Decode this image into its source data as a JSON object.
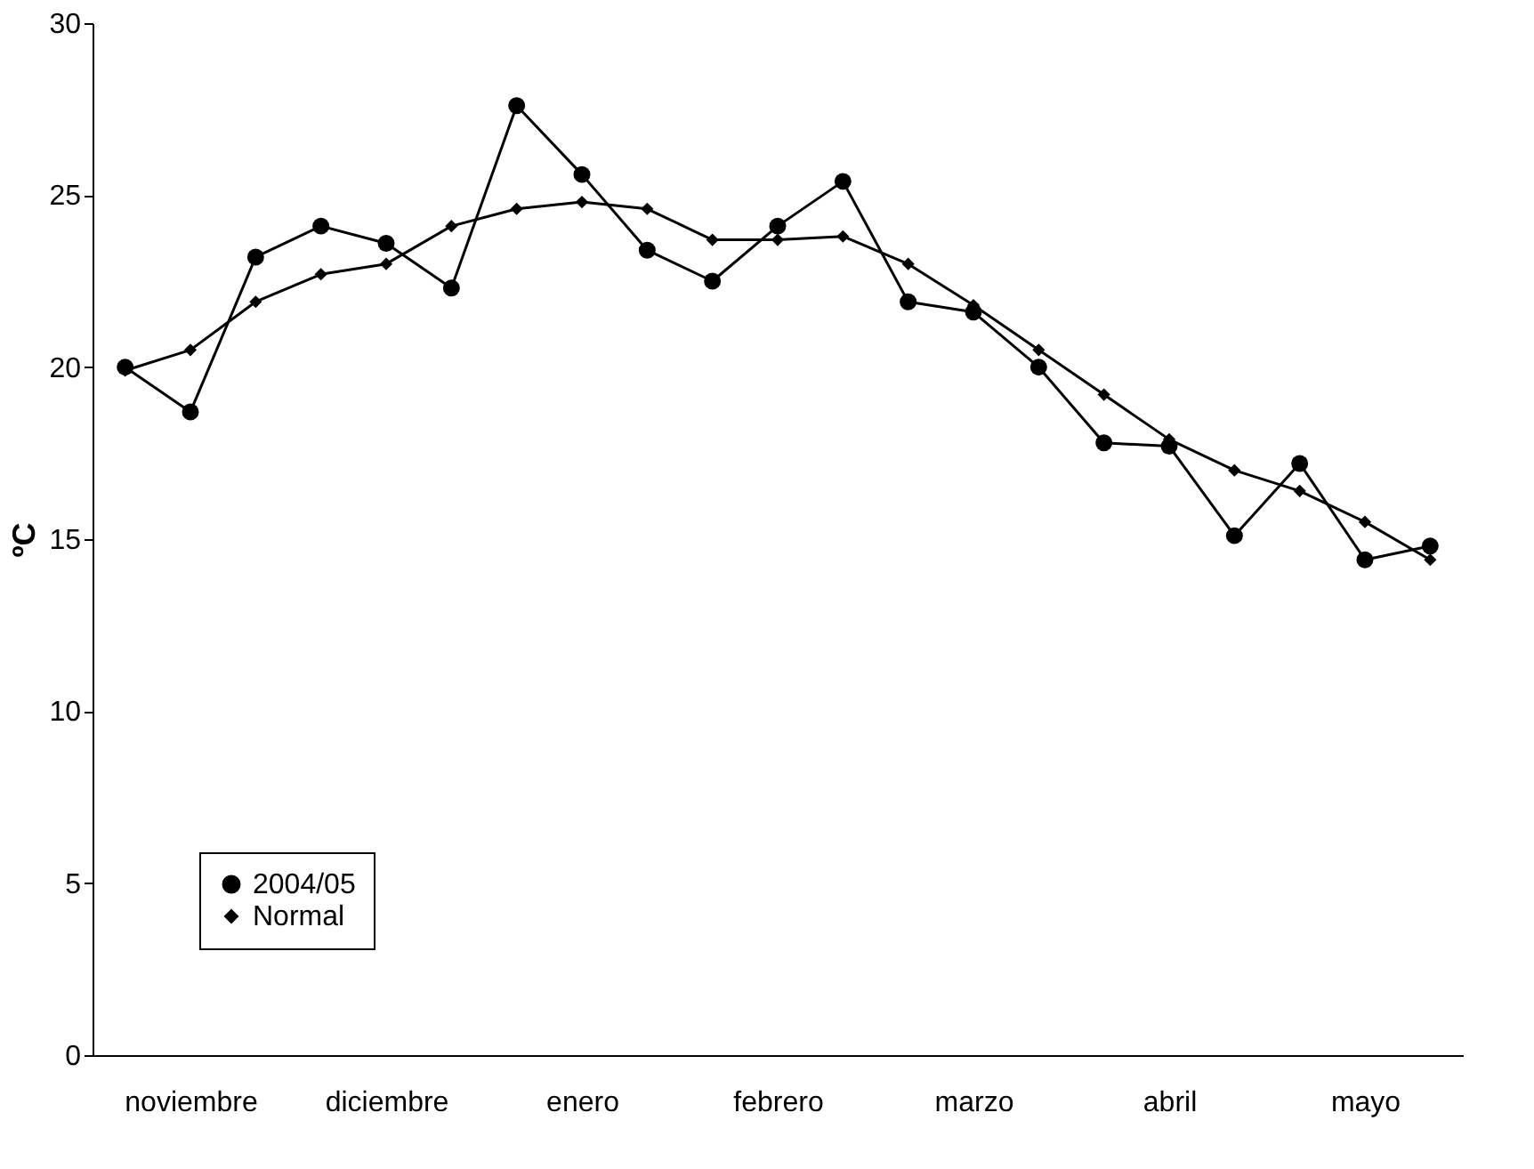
{
  "chart_data": {
    "type": "line",
    "ylabel": "ºC",
    "categories": [
      null,
      "noviembre",
      null,
      null,
      "diciembre",
      null,
      null,
      "enero",
      null,
      null,
      "febrero",
      null,
      null,
      "marzo",
      null,
      null,
      "abril",
      null,
      null,
      "mayo",
      null
    ],
    "series": [
      {
        "name": "2004/05",
        "color": "#000000",
        "marker": "circle",
        "values": [
          20.0,
          18.7,
          23.2,
          24.1,
          23.6,
          22.3,
          27.6,
          25.6,
          23.4,
          22.5,
          24.1,
          25.4,
          21.9,
          21.6,
          20.0,
          17.8,
          17.7,
          15.1,
          17.2,
          14.4,
          14.8
        ]
      },
      {
        "name": "Normal",
        "color": "#000000",
        "marker": "diamond",
        "values": [
          19.9,
          20.5,
          21.9,
          22.7,
          23.0,
          24.1,
          24.6,
          24.8,
          24.6,
          23.7,
          23.7,
          23.8,
          23.0,
          21.8,
          20.5,
          19.2,
          17.9,
          17.0,
          16.4,
          15.5,
          14.4
        ]
      }
    ],
    "ylim": [
      0,
      30
    ],
    "yticks": [
      0,
      5,
      10,
      15,
      20,
      25,
      30
    ],
    "grid": false,
    "legend": "bottom left",
    "line_style": "solid"
  }
}
